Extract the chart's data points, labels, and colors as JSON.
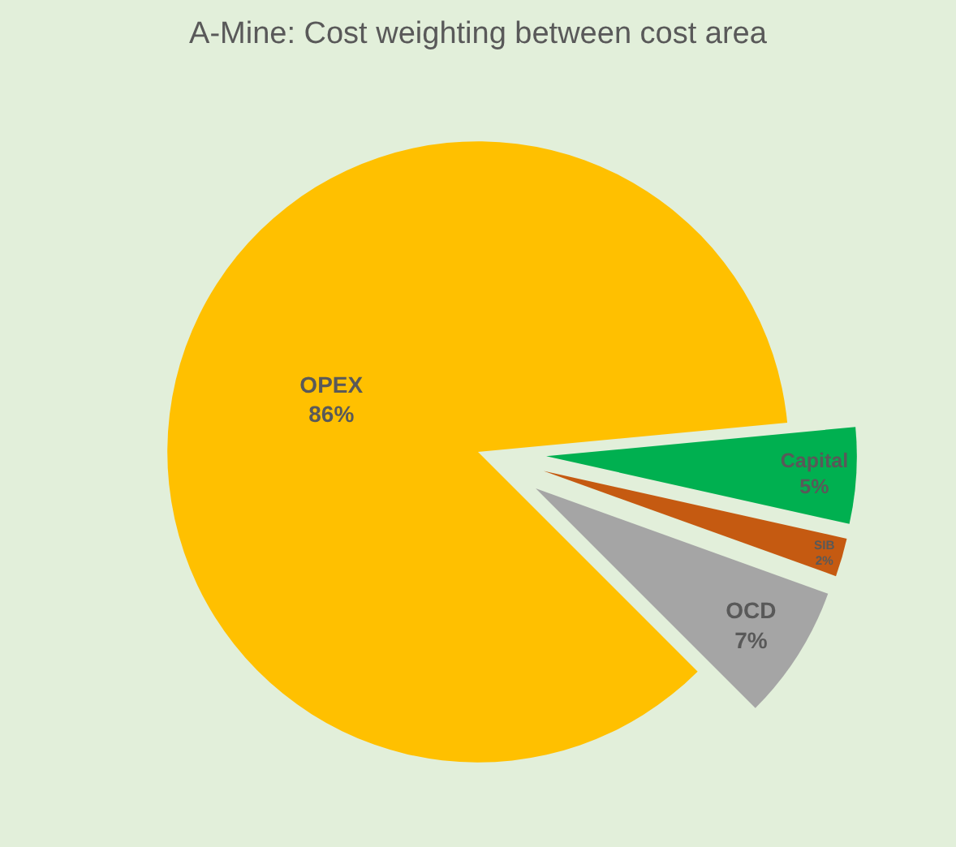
{
  "chart_data": {
    "type": "pie",
    "title": "A-Mine: Cost weighting between cost area",
    "categories": [
      "OPEX",
      "Capital",
      "SIB",
      "OCD"
    ],
    "values": [
      86,
      5,
      2,
      7
    ],
    "value_labels": [
      "86%",
      "5%",
      "2%",
      "7%"
    ],
    "colors": [
      "#ffc000",
      "#00b050",
      "#c55a11",
      "#a5a5a5"
    ],
    "legend": false
  }
}
